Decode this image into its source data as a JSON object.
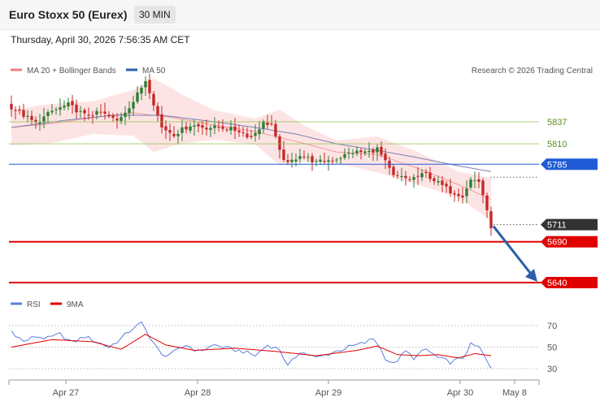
{
  "header": {
    "title": "Euro Stoxx 50 (Eurex)",
    "timeframe": "30 MIN",
    "datetime": "Thursday, April 30, 2026 7:56:35 AM CET"
  },
  "legend": {
    "ma20": "MA 20 + Bollinger Bands",
    "ma50": "MA 50",
    "credit": "Research © 2026 Trading Central",
    "rsi": "RSI",
    "rsi_ma": "9MA"
  },
  "colors": {
    "candle_up": "#2e7d32",
    "candle_down": "#c62828",
    "bollinger_band": "#fde4e4",
    "ma20": "#f08080",
    "ma50": "#7a7fb8",
    "pivot": "#1f5bd6",
    "resistance": "#8bc34a",
    "support": "#e00000",
    "last_price": "#333333",
    "rsi": "#5b7fe0",
    "rsi_ma": "#e00000",
    "arrow": "#2b5fa8"
  },
  "chart_data": [
    {
      "type": "candlestick",
      "title": "Euro Stoxx 50 (Eurex)",
      "interval": "30 MIN",
      "x_tick_labels": [
        "Apr 27",
        "Apr 28",
        "Apr 29",
        "Apr 30",
        "May 8"
      ],
      "y_range": [
        5630,
        5900
      ],
      "price_levels": [
        {
          "label": "5837",
          "value": 5837,
          "kind": "resistance"
        },
        {
          "label": "5810",
          "value": 5810,
          "kind": "resistance"
        },
        {
          "label": "5785",
          "value": 5785,
          "kind": "pivot"
        },
        {
          "label": "5711",
          "value": 5711,
          "kind": "last"
        },
        {
          "label": "5690",
          "value": 5690,
          "kind": "support"
        },
        {
          "label": "5640",
          "value": 5640,
          "kind": "support"
        }
      ],
      "forecast_arrow": {
        "from_index": 118,
        "from_value": 5709,
        "to_value": 5643
      },
      "close_anchors": [
        [
          0,
          5855
        ],
        [
          6,
          5835
        ],
        [
          10,
          5850
        ],
        [
          14,
          5858
        ],
        [
          18,
          5845
        ],
        [
          22,
          5848
        ],
        [
          26,
          5838
        ],
        [
          30,
          5862
        ],
        [
          33,
          5888
        ],
        [
          34,
          5875
        ],
        [
          37,
          5830
        ],
        [
          40,
          5822
        ],
        [
          44,
          5833
        ],
        [
          48,
          5830
        ],
        [
          52,
          5830
        ],
        [
          56,
          5826
        ],
        [
          59,
          5818
        ],
        [
          62,
          5836
        ],
        [
          64,
          5834
        ],
        [
          66,
          5800
        ],
        [
          68,
          5785
        ],
        [
          71,
          5797
        ],
        [
          75,
          5787
        ],
        [
          80,
          5792
        ],
        [
          84,
          5800
        ],
        [
          88,
          5800
        ],
        [
          90,
          5804
        ],
        [
          91,
          5796
        ],
        [
          94,
          5770
        ],
        [
          98,
          5767
        ],
        [
          102,
          5773
        ],
        [
          105,
          5762
        ],
        [
          108,
          5752
        ],
        [
          111,
          5747
        ],
        [
          113,
          5766
        ],
        [
          115,
          5764
        ],
        [
          116,
          5748
        ],
        [
          117,
          5726
        ],
        [
          118,
          5709
        ]
      ],
      "ma20_anchors": [
        [
          0,
          5830
        ],
        [
          10,
          5835
        ],
        [
          20,
          5842
        ],
        [
          30,
          5848
        ],
        [
          40,
          5842
        ],
        [
          50,
          5833
        ],
        [
          60,
          5825
        ],
        [
          70,
          5813
        ],
        [
          80,
          5800
        ],
        [
          90,
          5797
        ],
        [
          100,
          5780
        ],
        [
          110,
          5760
        ],
        [
          118,
          5742
        ]
      ],
      "band_half_width": [
        [
          0,
          22
        ],
        [
          10,
          24
        ],
        [
          20,
          20
        ],
        [
          30,
          28
        ],
        [
          35,
          45
        ],
        [
          42,
          30
        ],
        [
          50,
          18
        ],
        [
          60,
          16
        ],
        [
          66,
          34
        ],
        [
          72,
          22
        ],
        [
          80,
          14
        ],
        [
          90,
          22
        ],
        [
          100,
          20
        ],
        [
          110,
          16
        ],
        [
          118,
          26
        ]
      ],
      "ma50_anchors": [
        [
          0,
          5830
        ],
        [
          15,
          5840
        ],
        [
          25,
          5845
        ],
        [
          37,
          5845
        ],
        [
          50,
          5837
        ],
        [
          60,
          5830
        ],
        [
          70,
          5822
        ],
        [
          80,
          5810
        ],
        [
          90,
          5802
        ],
        [
          100,
          5793
        ],
        [
          110,
          5783
        ],
        [
          118,
          5776
        ]
      ]
    },
    {
      "type": "line",
      "title": "RSI",
      "y_range": [
        25,
        78
      ],
      "y_ticks": [
        70,
        50,
        30
      ],
      "series": [
        {
          "name": "RSI",
          "anchors": [
            [
              0,
              65
            ],
            [
              3,
              55
            ],
            [
              6,
              60
            ],
            [
              9,
              58
            ],
            [
              12,
              62
            ],
            [
              15,
              54
            ],
            [
              18,
              60
            ],
            [
              21,
              55
            ],
            [
              24,
              50
            ],
            [
              27,
              58
            ],
            [
              30,
              68
            ],
            [
              32,
              72
            ],
            [
              34,
              60
            ],
            [
              37,
              42
            ],
            [
              40,
              45
            ],
            [
              43,
              52
            ],
            [
              46,
              46
            ],
            [
              50,
              52
            ],
            [
              54,
              48
            ],
            [
              57,
              46
            ],
            [
              60,
              42
            ],
            [
              63,
              52
            ],
            [
              66,
              48
            ],
            [
              68,
              32
            ],
            [
              71,
              46
            ],
            [
              75,
              40
            ],
            [
              79,
              45
            ],
            [
              83,
              50
            ],
            [
              87,
              54
            ],
            [
              89,
              58
            ],
            [
              90,
              54
            ],
            [
              92,
              40
            ],
            [
              94,
              34
            ],
            [
              97,
              46
            ],
            [
              99,
              40
            ],
            [
              102,
              48
            ],
            [
              105,
              40
            ],
            [
              108,
              36
            ],
            [
              111,
              40
            ],
            [
              113,
              52
            ],
            [
              115,
              50
            ],
            [
              116,
              44
            ],
            [
              117,
              36
            ],
            [
              118,
              30
            ]
          ]
        },
        {
          "name": "9MA",
          "anchors": [
            [
              0,
              50
            ],
            [
              10,
              57
            ],
            [
              20,
              55
            ],
            [
              27,
              48
            ],
            [
              33,
              62
            ],
            [
              38,
              52
            ],
            [
              45,
              47
            ],
            [
              55,
              49
            ],
            [
              65,
              46
            ],
            [
              75,
              42
            ],
            [
              85,
              47
            ],
            [
              90,
              51
            ],
            [
              95,
              43
            ],
            [
              100,
              42
            ],
            [
              105,
              43
            ],
            [
              110,
              40
            ],
            [
              114,
              44
            ],
            [
              118,
              42
            ]
          ]
        }
      ]
    }
  ]
}
